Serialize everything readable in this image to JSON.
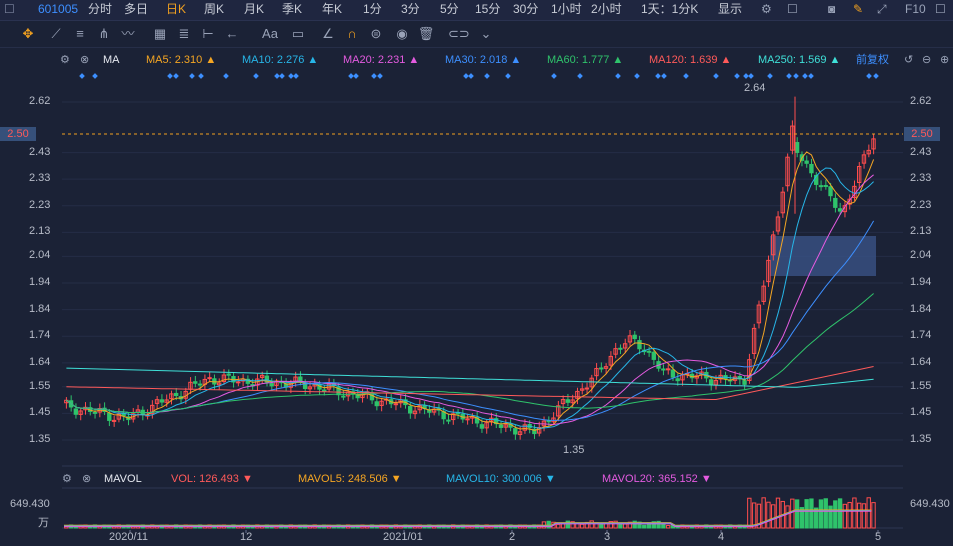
{
  "topbar": {
    "code": "601005",
    "items": [
      "分时",
      "多日",
      "日K",
      "周K",
      "月K",
      "季K",
      "年K",
      "1分",
      "3分",
      "5分",
      "15分",
      "30分",
      "1小时",
      "2小时",
      "1天：1分K",
      "显示"
    ],
    "active_index": 2,
    "right_text": "F10"
  },
  "legend": {
    "indicator": "MA",
    "ma5": "MA5: 2.310",
    "ma10": "MA10: 2.276",
    "ma20": "MA20: 2.231",
    "ma30": "MA30: 2.018",
    "ma60": "MA60: 1.777",
    "ma120": "MA120: 1.639",
    "ma250": "MA250: 1.569",
    "adjust": "前复权"
  },
  "price_axis": [
    "2.62",
    "2.50",
    "2.43",
    "2.33",
    "2.23",
    "2.13",
    "2.04",
    "1.94",
    "1.84",
    "1.74",
    "1.64",
    "1.55",
    "1.45",
    "1.35"
  ],
  "current_price": "2.50",
  "high_label": "2.64",
  "low_label": "1.35",
  "vol_legend": {
    "indicator": "MAVOL",
    "vol": "VOL: 126.493",
    "mavol5": "MAVOL5: 248.506",
    "mavol10": "MAVOL10: 300.006",
    "mavol20": "MAVOL20: 365.152"
  },
  "vol_axis": {
    "max": "649.430",
    "unit": "万"
  },
  "date_axis": [
    "2020/11",
    "12",
    "2021/01",
    "2",
    "3",
    "4",
    "5"
  ],
  "colors": {
    "up": "#ff4d4d",
    "down": "#2fc36b",
    "ma5": "#f5a623",
    "ma10": "#27b6e8",
    "ma20": "#e45be0",
    "ma30": "#3d8fff",
    "ma60": "#2fc36b",
    "ma120": "#ff5a5a",
    "ma250": "#3fe0d8"
  }
}
